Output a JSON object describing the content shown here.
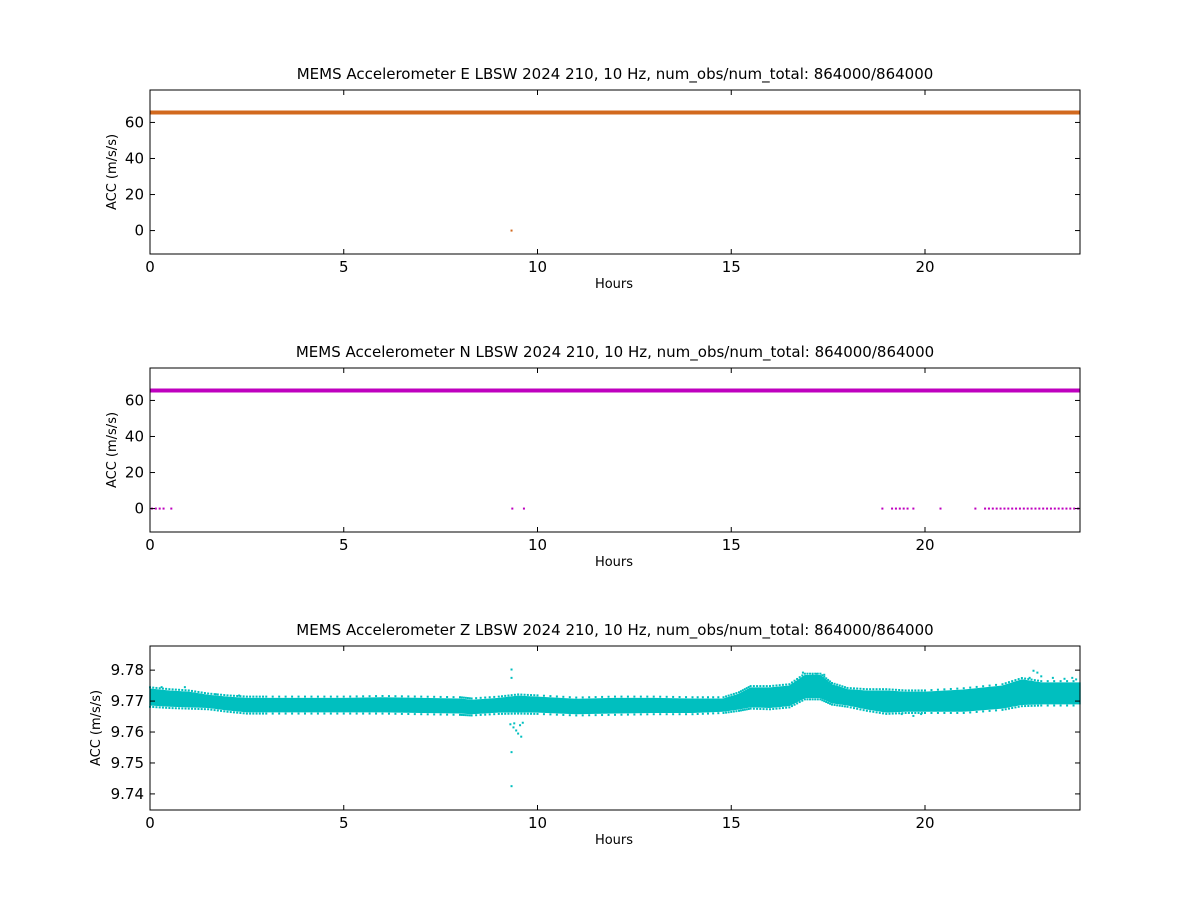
{
  "chart_data": [
    {
      "type": "scatter",
      "title": "MEMS Accelerometer E LBSW 2024 210, 10 Hz, num_obs/num_total: 864000/864000",
      "xlabel": "Hours",
      "ylabel": "ACC (m/s/s)",
      "xlim": [
        0,
        24
      ],
      "ylim": [
        -13,
        78
      ],
      "xticks": [
        0,
        5,
        10,
        15,
        20
      ],
      "yticks": [
        0,
        20,
        40,
        60
      ],
      "color": "#d2691e",
      "grid": false,
      "series": [
        {
          "lines": [
            {
              "x": [
                0,
                24
              ],
              "y": 65.5
            }
          ],
          "points": [
            [
              9.33,
              0
            ]
          ]
        }
      ]
    },
    {
      "type": "scatter",
      "title": "MEMS Accelerometer N LBSW 2024 210, 10 Hz, num_obs/num_total: 864000/864000",
      "xlabel": "Hours",
      "ylabel": "ACC (m/s/s)",
      "xlim": [
        0,
        24
      ],
      "ylim": [
        -13,
        78
      ],
      "xticks": [
        0,
        5,
        10,
        15,
        20
      ],
      "yticks": [
        0,
        20,
        40,
        60
      ],
      "color": "#bf00bf",
      "grid": false,
      "series": [
        {
          "lines": [
            {
              "x": [
                0,
                24
              ],
              "y": 65.5
            }
          ],
          "points": [
            [
              0.05,
              0
            ],
            [
              0.15,
              0
            ],
            [
              0.25,
              0
            ],
            [
              0.35,
              0
            ],
            [
              0.55,
              0
            ],
            [
              9.35,
              0
            ],
            [
              9.65,
              0
            ],
            [
              18.9,
              0
            ],
            [
              19.15,
              0
            ],
            [
              19.25,
              0
            ],
            [
              19.35,
              0
            ],
            [
              19.45,
              0
            ],
            [
              19.55,
              0
            ],
            [
              19.7,
              0
            ],
            [
              20.4,
              0
            ],
            [
              21.3,
              0
            ],
            [
              21.55,
              0
            ],
            [
              21.65,
              0
            ],
            [
              21.75,
              0
            ],
            [
              21.85,
              0
            ],
            [
              21.95,
              0
            ],
            [
              22.05,
              0
            ],
            [
              22.15,
              0
            ],
            [
              22.25,
              0
            ],
            [
              22.35,
              0
            ],
            [
              22.45,
              0
            ],
            [
              22.55,
              0
            ],
            [
              22.65,
              0
            ],
            [
              22.75,
              0
            ],
            [
              22.85,
              0
            ],
            [
              22.95,
              0
            ],
            [
              23.05,
              0
            ],
            [
              23.15,
              0
            ],
            [
              23.25,
              0
            ],
            [
              23.35,
              0
            ],
            [
              23.45,
              0
            ],
            [
              23.55,
              0
            ],
            [
              23.65,
              0
            ],
            [
              23.75,
              0
            ],
            [
              23.85,
              0
            ],
            [
              23.95,
              0
            ]
          ]
        }
      ]
    },
    {
      "type": "scatter",
      "title": "MEMS Accelerometer Z LBSW 2024 210, 10 Hz, num_obs/num_total: 864000/864000",
      "xlabel": "Hours",
      "ylabel": "ACC (m/s/s)",
      "xlim": [
        0,
        24
      ],
      "ylim": [
        9.7348,
        9.7878
      ],
      "xticks": [
        0,
        5,
        10,
        15,
        20
      ],
      "yticks": [
        9.74,
        9.75,
        9.76,
        9.77,
        9.78
      ],
      "color": "#00bfbf",
      "grid": false,
      "series": [
        {
          "band": {
            "x": [
              0,
              0.5,
              1,
              1.5,
              2,
              2.5,
              3,
              4,
              5,
              6,
              7,
              8,
              8.3,
              9,
              9.5,
              10,
              11,
              12,
              13,
              14,
              14.8,
              15.2,
              15.5,
              16,
              16.5,
              16.9,
              17.3,
              17.6,
              18,
              18.5,
              19,
              19.5,
              20,
              21,
              22,
              22.5,
              23,
              24
            ],
            "lower": [
              9.7688,
              9.7684,
              9.7682,
              9.768,
              9.7672,
              9.7666,
              9.7666,
              9.7666,
              9.7666,
              9.7666,
              9.7664,
              9.7662,
              9.766,
              9.7665,
              9.7666,
              9.7665,
              9.766,
              9.7662,
              9.7664,
              9.7664,
              9.7668,
              9.7675,
              9.7682,
              9.768,
              9.7686,
              9.7712,
              9.7712,
              9.7695,
              9.7688,
              9.7675,
              9.7665,
              9.7668,
              9.7668,
              9.7668,
              9.7678,
              9.769,
              9.7692,
              9.7692
            ],
            "upper": [
              9.7738,
              9.7732,
              9.7728,
              9.7718,
              9.7712,
              9.7708,
              9.7708,
              9.7708,
              9.7708,
              9.771,
              9.7708,
              9.7706,
              9.7702,
              9.7708,
              9.7715,
              9.7712,
              9.7705,
              9.7708,
              9.7708,
              9.7706,
              9.7706,
              9.7722,
              9.7742,
              9.7742,
              9.7748,
              9.7782,
              9.7782,
              9.7752,
              9.7736,
              9.7732,
              9.7732,
              9.7728,
              9.7728,
              9.7735,
              9.7748,
              9.7768,
              9.7758,
              9.7758
            ]
          },
          "points": [
            [
              9.33,
              9.7802
            ],
            [
              9.33,
              9.7775
            ],
            [
              9.33,
              9.7535
            ],
            [
              9.33,
              9.7425
            ],
            [
              9.3,
              9.7625
            ],
            [
              9.38,
              9.7615
            ],
            [
              9.45,
              9.7605
            ],
            [
              9.5,
              9.7595
            ],
            [
              9.58,
              9.7585
            ],
            [
              9.4,
              9.7628
            ],
            [
              9.55,
              9.7622
            ],
            [
              9.62,
              9.763
            ],
            [
              22.8,
              9.7798
            ],
            [
              22.9,
              9.7792
            ],
            [
              23.0,
              9.778
            ],
            [
              22.7,
              9.7775
            ],
            [
              23.3,
              9.7775
            ],
            [
              23.6,
              9.7772
            ],
            [
              23.8,
              9.7775
            ],
            [
              23.9,
              9.777
            ],
            [
              16.85,
              9.7792
            ],
            [
              17.1,
              9.7786
            ],
            [
              17.4,
              9.7785
            ],
            [
              17.2,
              9.7788
            ],
            [
              19.4,
              9.7658
            ],
            [
              19.7,
              9.7652
            ],
            [
              19.9,
              9.7658
            ],
            [
              0.3,
              9.7745
            ],
            [
              0.9,
              9.7745
            ],
            [
              1.7,
              9.7722
            ],
            [
              2.3,
              9.7718
            ]
          ]
        }
      ]
    }
  ]
}
